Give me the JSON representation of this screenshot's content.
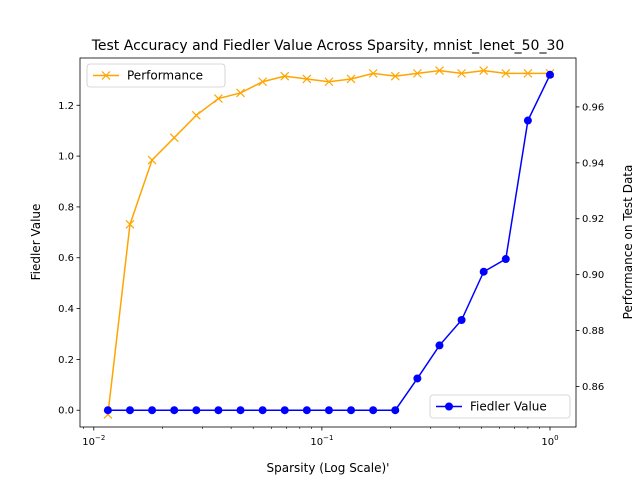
{
  "chart_data": {
    "type": "line",
    "title": "Test Accuracy and Fiedler Value Across Sparsity, mnist_lenet_50_30",
    "xlabel": "Sparsity (Log Scale)'",
    "ylabel_left": "Fiedler Value",
    "ylabel_right": "Performance on Test Data",
    "x_scale": "log",
    "xlim": [
      0.0087,
      1.3
    ],
    "ylim_left": [
      -0.066,
      1.386
    ],
    "ylim_right": [
      0.8455,
      0.9775
    ],
    "x_ticks": [
      {
        "value": 0.01,
        "base": "10",
        "exp": "−2"
      },
      {
        "value": 0.1,
        "base": "10",
        "exp": "−1"
      },
      {
        "value": 1,
        "base": "10",
        "exp": "0"
      }
    ],
    "y_ticks_left": [
      "0.0",
      "0.2",
      "0.4",
      "0.6",
      "0.8",
      "1.0",
      "1.2"
    ],
    "y_ticks_right": [
      "0.86",
      "0.88",
      "0.90",
      "0.92",
      "0.94",
      "0.96"
    ],
    "x": [
      0.01153,
      0.01441,
      0.01801,
      0.02252,
      0.02815,
      0.03518,
      0.04398,
      0.05498,
      0.06872,
      0.0859,
      0.10737,
      0.13422,
      0.16777,
      0.20972,
      0.26214,
      0.32768,
      0.4096,
      0.512,
      0.64,
      0.8,
      1.0
    ],
    "series": [
      {
        "name": "Performance",
        "axis": "right",
        "color": "#FFA500",
        "marker": "x",
        "values": [
          0.85,
          0.918,
          0.941,
          0.949,
          0.957,
          0.963,
          0.965,
          0.969,
          0.971,
          0.97,
          0.969,
          0.97,
          0.972,
          0.971,
          0.972,
          0.973,
          0.972,
          0.973,
          0.972,
          0.972,
          0.972
        ]
      },
      {
        "name": "Fiedler Value",
        "axis": "left",
        "color": "#0000FF",
        "marker": "o",
        "values": [
          0.0,
          0.0,
          0.0,
          0.0,
          0.0,
          0.0,
          0.0,
          0.0,
          0.0,
          0.0,
          0.0,
          0.0,
          0.0,
          0.0,
          0.125,
          0.255,
          0.355,
          0.545,
          0.595,
          1.14,
          1.32
        ]
      }
    ],
    "legends": [
      {
        "series": "Performance",
        "placement": "upper-left"
      },
      {
        "series": "Fiedler Value",
        "placement": "lower-right"
      }
    ],
    "grid": false
  }
}
